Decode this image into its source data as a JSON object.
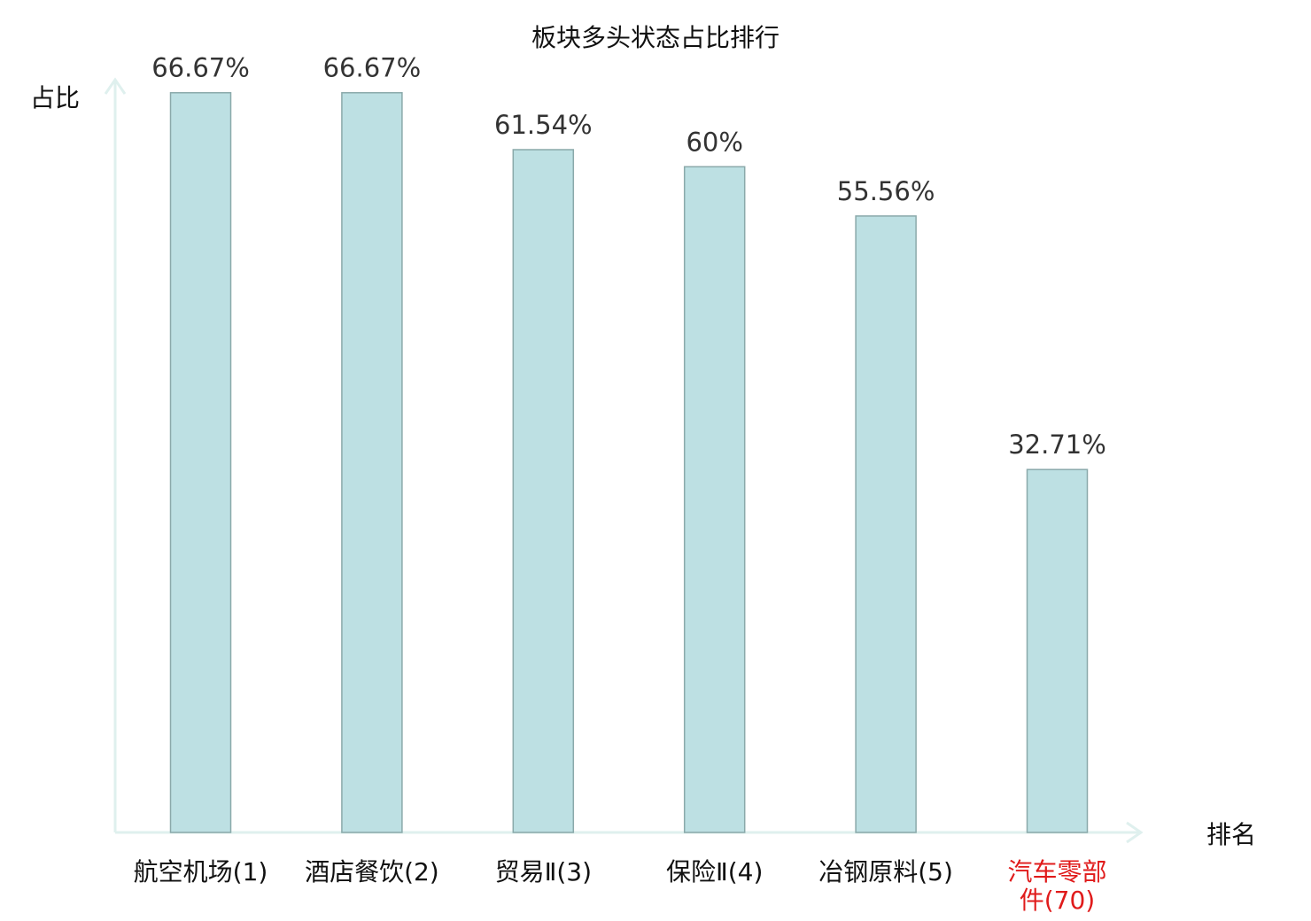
{
  "chart_data": {
    "type": "bar",
    "title": "板块多头状态占比排行",
    "ylabel": "占比",
    "xlabel": "排名",
    "categories": [
      [
        "航空机场(1)"
      ],
      [
        "酒店餐饮(2)"
      ],
      [
        "贸易Ⅱ(3)"
      ],
      [
        "保险Ⅱ(4)"
      ],
      [
        "冶钢原料(5)"
      ],
      [
        "汽车零部",
        "件(70)"
      ]
    ],
    "values": [
      66.67,
      66.67,
      61.54,
      60,
      55.56,
      32.71
    ],
    "value_labels": [
      "66.67%",
      "66.67%",
      "61.54%",
      "60%",
      "55.56%",
      "32.71%"
    ],
    "highlight_index": 5,
    "ylim": [
      0,
      70
    ],
    "grid": false,
    "colors": {
      "bar_fill": "#bde0e3",
      "bar_stroke": "#8aa9aa",
      "axis": "#dff0ee",
      "label": "#111111",
      "highlight": "#e01b1b"
    }
  }
}
